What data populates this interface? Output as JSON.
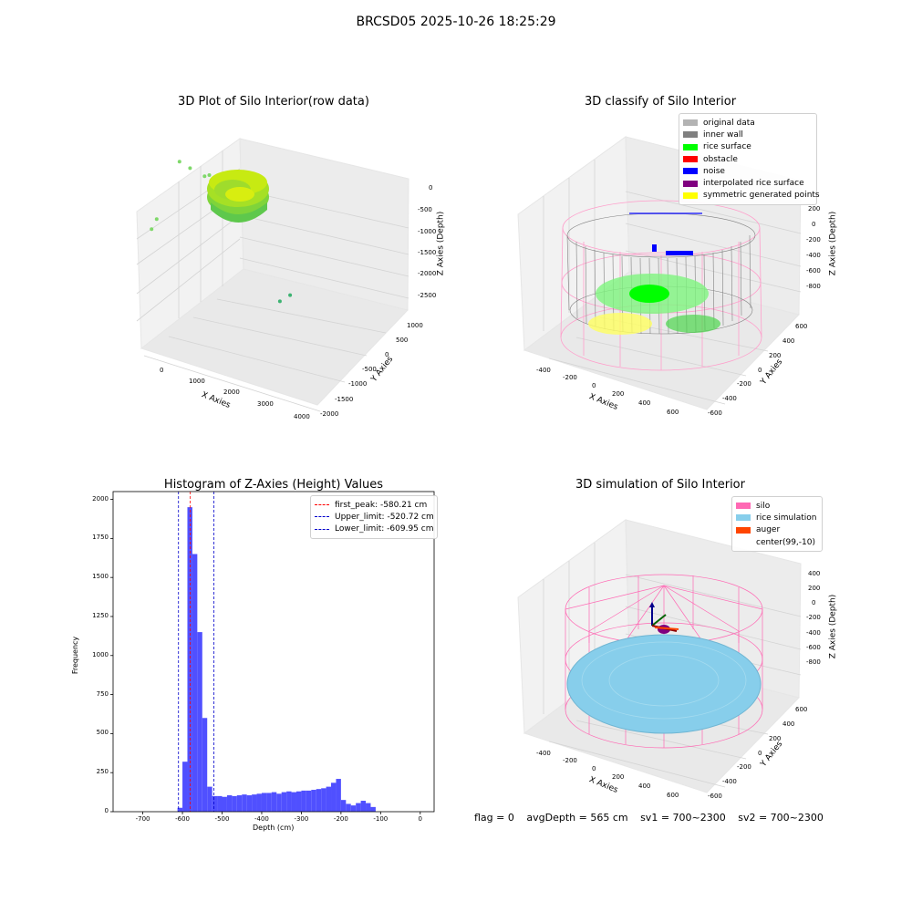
{
  "figure": {
    "suptitle": "BRCSD05 2025-10-26 18:25:29",
    "footer": {
      "flag": "flag = 0",
      "avgdepth": "avgDepth = 565 cm",
      "sv1": "sv1 = 700~2300",
      "sv2": "sv2 = 700~2300"
    }
  },
  "colors": {
    "histogram_bar": "#5050ff",
    "first_peak_line": "#ff0000",
    "limit_lines": "#0000cc",
    "original": "#b3b3b3",
    "inner_wall": "#808080",
    "rice_surface": "#00ff00",
    "obstacle": "#ff0000",
    "noise": "#0000ff",
    "interpolated": "#800080",
    "symmetric": "#ffff00",
    "silo": "#ff69b4",
    "rice_sim": "#87ceeb",
    "auger": "#ff4500"
  },
  "chart_data": [
    {
      "type": "scatter",
      "subtype": "3d",
      "title": "3D Plot of Silo Interior(row data)",
      "xlabel": "X Axies",
      "ylabel": "Y Axies",
      "zlabel": "Z Axies (Depth)",
      "xticks": [
        "0",
        "1000",
        "2000",
        "3000",
        "4000"
      ],
      "yticks": [
        "1000",
        "500",
        "0",
        "-500",
        "-1000",
        "-1500",
        "-2000"
      ],
      "zticks": [
        "0",
        "-500",
        "-1000",
        "-1500",
        "-2000",
        "-2500"
      ],
      "grid": true,
      "series": [
        {
          "points": [
            {
              "x": 600,
              "y": 300,
              "z": -100
            },
            {
              "x": 800,
              "y": 200,
              "z": -120
            },
            {
              "x": 1100,
              "y": 100,
              "z": -150
            },
            {
              "x": 1500,
              "y": 500,
              "z": -300
            },
            {
              "x": -400,
              "y": -300,
              "z": -1200
            },
            {
              "x": -600,
              "y": -400,
              "z": -1400
            },
            {
              "x": 3300,
              "y": 500,
              "z": -2600
            },
            {
              "x": 3700,
              "y": 700,
              "z": -2500
            }
          ]
        }
      ]
    },
    {
      "type": "scatter",
      "subtype": "3d",
      "title": "3D classify of Silo Interior",
      "xlabel": "X Axies",
      "ylabel": "Y Axies",
      "zlabel": "Z Axies (Depth)",
      "xticks": [
        "-400",
        "-200",
        "0",
        "200",
        "400",
        "600"
      ],
      "yticks": [
        "600",
        "400",
        "200",
        "0",
        "-200",
        "-400",
        "-600"
      ],
      "zticks": [
        "200",
        "0",
        "-200",
        "-400",
        "-600",
        "-800"
      ],
      "grid": true,
      "legend_position": "top-right",
      "legend": [
        {
          "label": "original data",
          "color_key": "original"
        },
        {
          "label": "inner wall",
          "color_key": "inner_wall"
        },
        {
          "label": "rice surface",
          "color_key": "rice_surface"
        },
        {
          "label": "obstacle",
          "color_key": "obstacle"
        },
        {
          "label": "noise",
          "color_key": "noise"
        },
        {
          "label": "interpolated rice surface",
          "color_key": "interpolated"
        },
        {
          "label": "symmetric generated points",
          "color_key": "symmetric"
        }
      ]
    },
    {
      "type": "bar",
      "subtype": "histogram",
      "title": "Histogram of Z-Axies (Height) Values",
      "xlabel": "Depth (cm)",
      "ylabel": "Frequency",
      "xlim": [
        -775,
        35
      ],
      "ylim": [
        0,
        2050
      ],
      "xticks": [
        -700,
        -600,
        -500,
        -400,
        -300,
        -200,
        -100,
        0
      ],
      "yticks": [
        0,
        250,
        500,
        750,
        1000,
        1250,
        1500,
        1750,
        2000
      ],
      "bin_width": 12.5,
      "bin_start": -612.5,
      "values": [
        25,
        320,
        1950,
        1650,
        1150,
        600,
        160,
        100,
        100,
        95,
        105,
        100,
        105,
        110,
        105,
        110,
        115,
        120,
        120,
        125,
        115,
        125,
        130,
        125,
        130,
        135,
        135,
        140,
        145,
        150,
        160,
        185,
        210,
        75,
        50,
        40,
        55,
        70,
        55,
        30
      ],
      "vlines": [
        {
          "label": "first_peak: -580.21 cm",
          "x": -580.21,
          "color_key": "first_peak_line"
        },
        {
          "label": "Upper_limit: -520.72 cm",
          "x": -520.72,
          "color_key": "limit_lines"
        },
        {
          "label": "Lower_limit: -609.95 cm",
          "x": -609.95,
          "color_key": "limit_lines"
        }
      ],
      "legend_position": "top-right"
    },
    {
      "type": "scatter",
      "subtype": "3d",
      "title": "3D simulation of Silo Interior",
      "xlabel": "X Axies",
      "ylabel": "Y Axies",
      "zlabel": "Z Axies (Depth)",
      "xticks": [
        "-400",
        "-200",
        "0",
        "200",
        "400",
        "600"
      ],
      "yticks": [
        "600",
        "400",
        "200",
        "0",
        "-200",
        "-400",
        "-600"
      ],
      "zticks": [
        "400",
        "200",
        "0",
        "-200",
        "-400",
        "-600",
        "-800"
      ],
      "grid": true,
      "legend_position": "top-right",
      "legend": [
        {
          "label": "silo",
          "color_key": "silo"
        },
        {
          "label": "rice simulation",
          "color_key": "rice_sim"
        },
        {
          "label": "auger",
          "color_key": "auger"
        },
        {
          "label": "center(99,-10)",
          "color_key": ""
        }
      ]
    }
  ]
}
